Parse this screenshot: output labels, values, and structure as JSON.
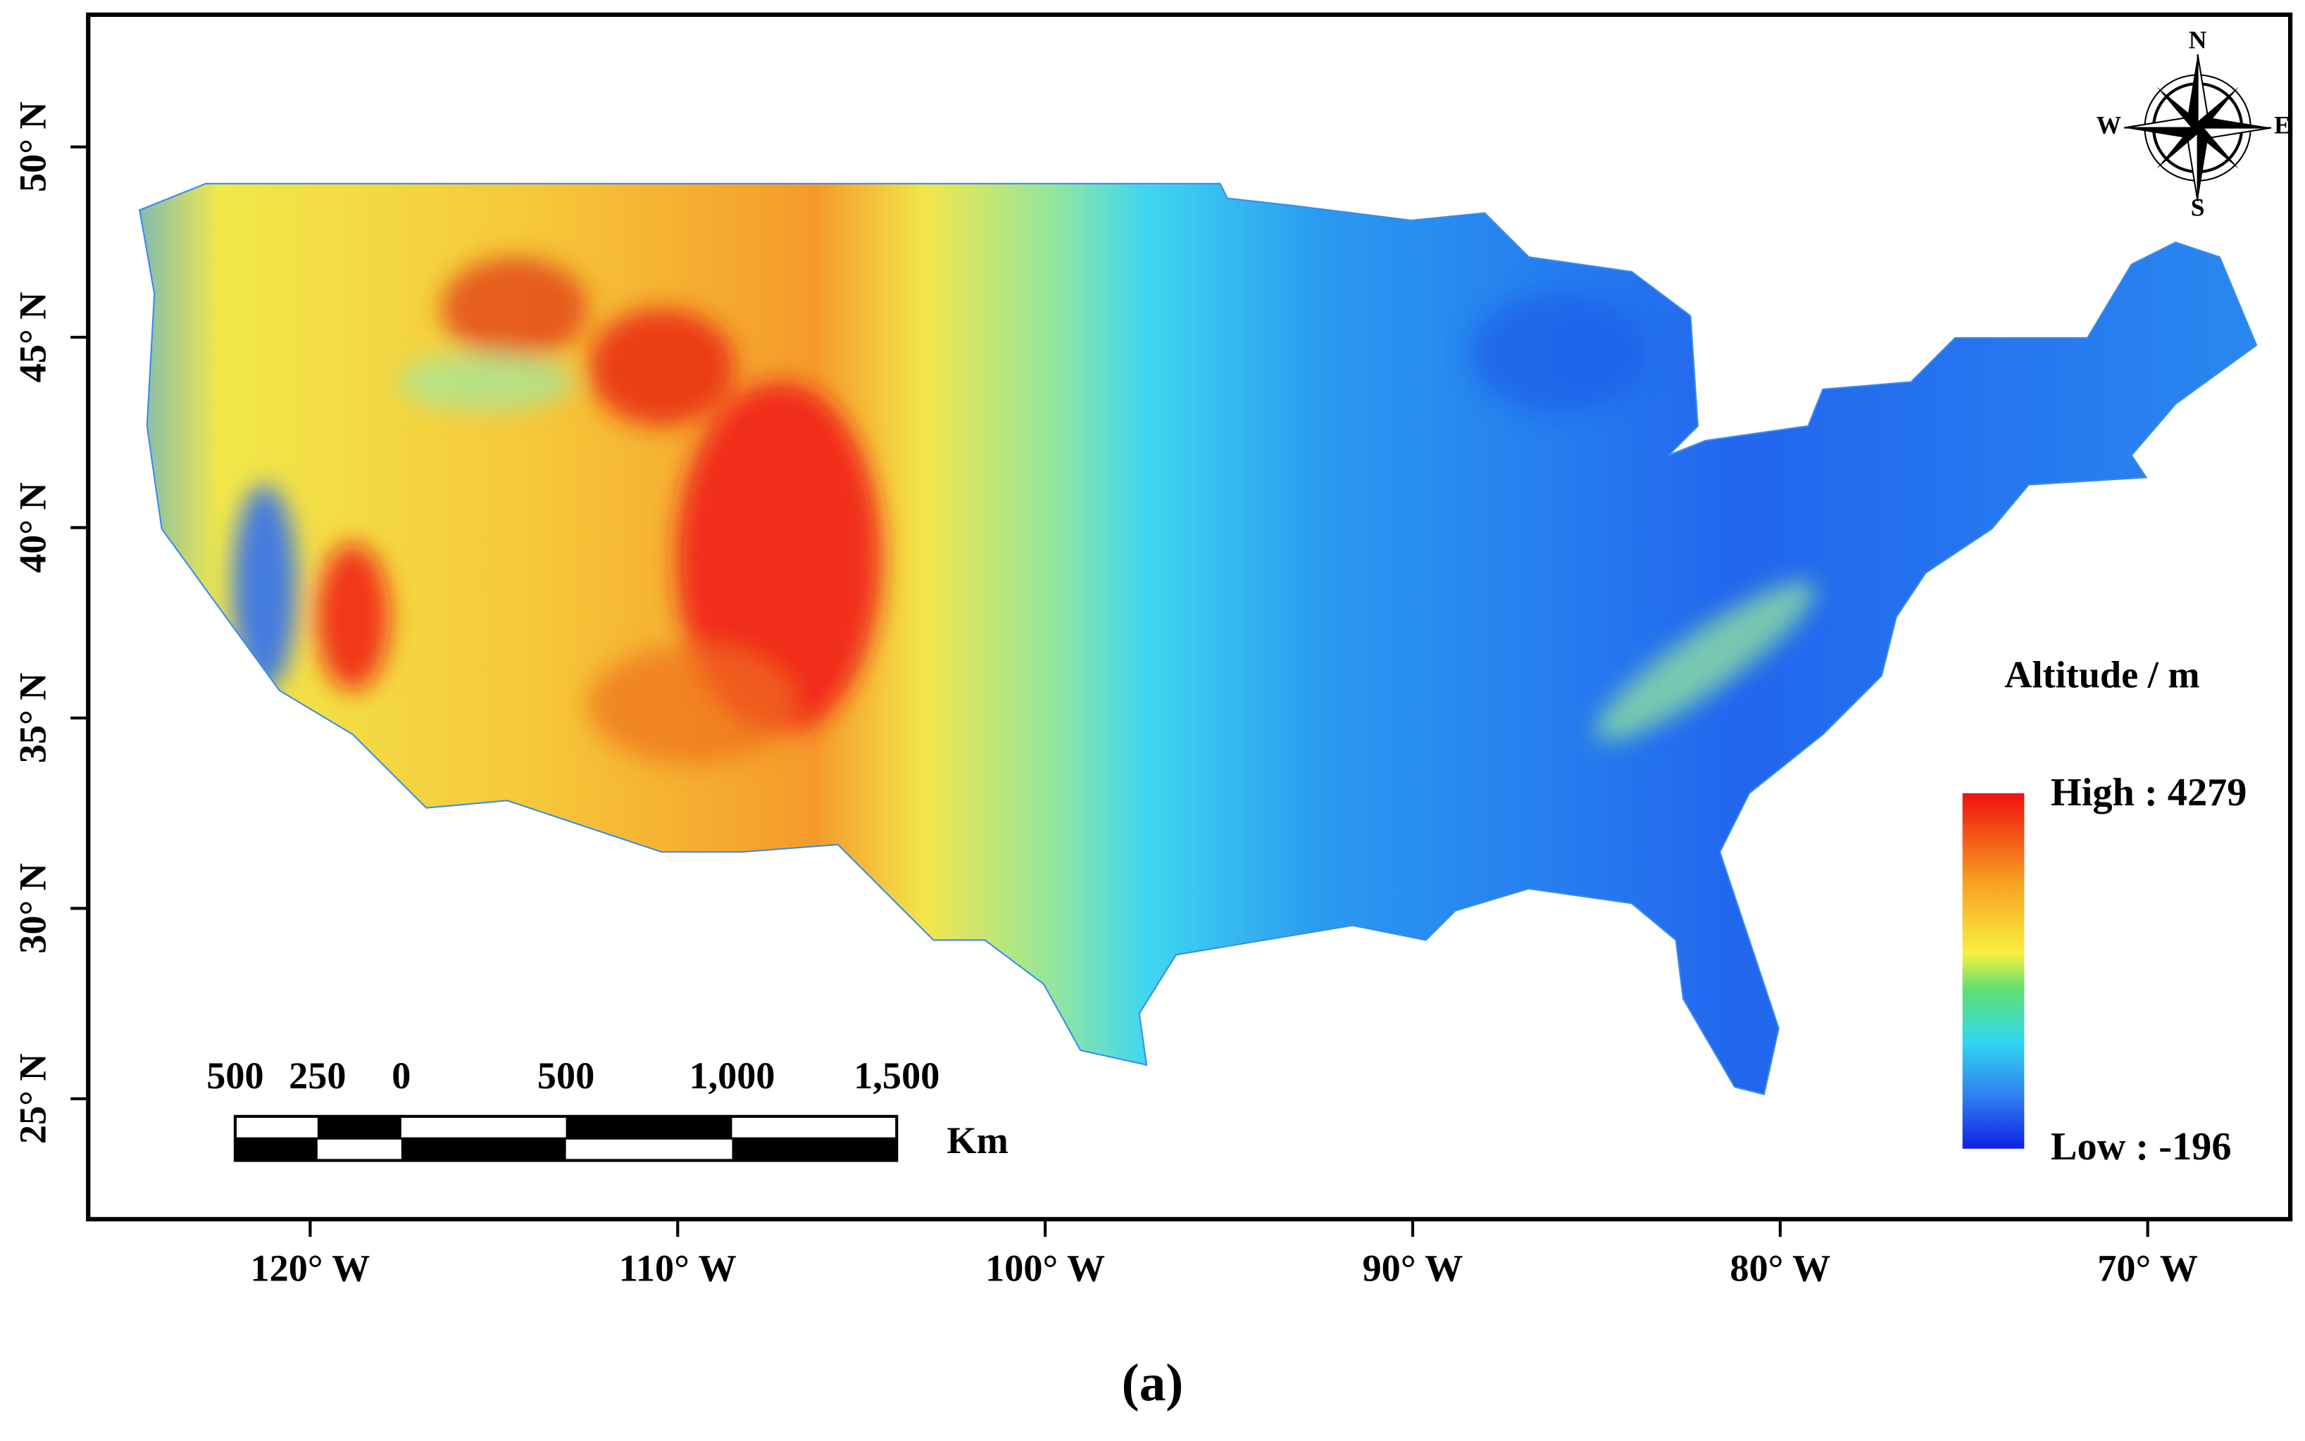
{
  "map": {
    "lat_labels": [
      "50° N",
      "45° N",
      "40° N",
      "35° N",
      "30° N",
      "25° N"
    ],
    "lon_labels": [
      "120° W",
      "110° W",
      "100° W",
      "90° W",
      "80° W",
      "70° W"
    ],
    "legend": {
      "title": "Altitude / m",
      "high": "High : 4279",
      "low": "Low : -196"
    },
    "scale_bar": {
      "labels": [
        "500",
        "250",
        "0",
        "500",
        "1,000",
        "1,500"
      ],
      "unit": "Km"
    },
    "compass": {
      "n": "N",
      "s": "S",
      "e": "E",
      "w": "W"
    }
  },
  "caption": "(a)"
}
